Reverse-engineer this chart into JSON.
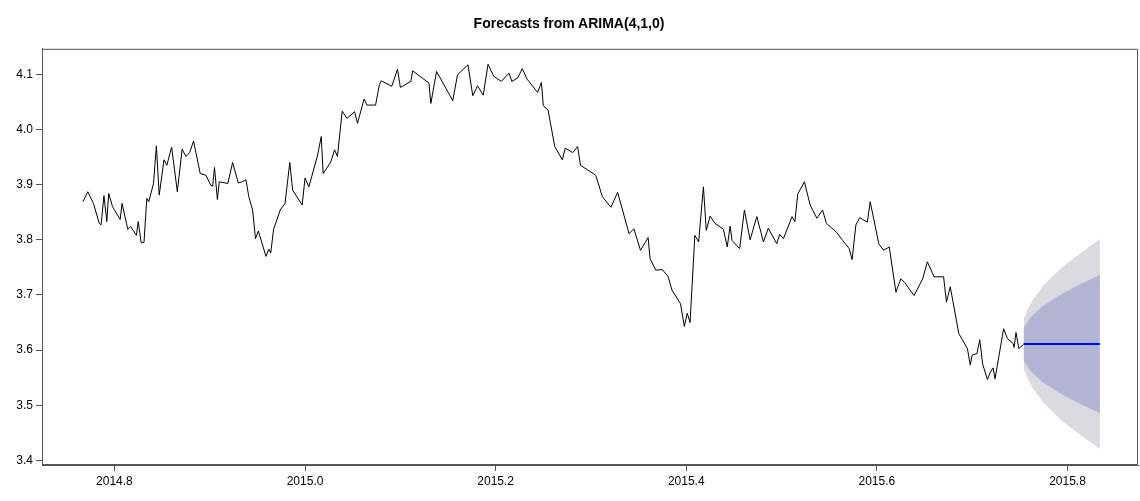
{
  "chart_data": {
    "type": "line",
    "title": "Forecasts from ARIMA(4,1,0)",
    "xlim": [
      2014.724,
      2015.874
    ],
    "ylim": [
      3.392,
      4.146
    ],
    "xticks": [
      {
        "value": 2014.8,
        "label": "2014.8"
      },
      {
        "value": 2015,
        "label": "2015.0"
      },
      {
        "value": 2015.2,
        "label": "2015.2"
      },
      {
        "value": 2015.4,
        "label": "2015.4"
      },
      {
        "value": 2015.6,
        "label": "2015.6"
      },
      {
        "value": 2015.8,
        "label": "2015.8"
      }
    ],
    "yticks": [
      3.4,
      3.5,
      3.6,
      3.7,
      3.8,
      3.9,
      {
        "value": 4,
        "label": "4.0"
      },
      4.1
    ],
    "grid": false,
    "legend": false,
    "marker": "none",
    "line_style": "solid",
    "series": [
      {
        "color": "#000000",
        "x": [
          2014.767,
          2014.772,
          2014.778,
          2014.784,
          2014.786,
          2014.789,
          2014.792,
          2014.794,
          2014.798,
          2014.806,
          2014.808,
          2014.814,
          2014.817,
          2014.823,
          2014.825,
          2014.828,
          2014.831,
          2014.834,
          2014.836,
          2014.841,
          2014.844,
          2014.847,
          2014.852,
          2014.855,
          2014.86,
          2014.866,
          2014.871,
          2014.875,
          2014.879,
          2014.883,
          2014.89,
          2014.896,
          2014.901,
          2014.903,
          2014.905,
          2014.908,
          2014.91,
          2014.919,
          2014.924,
          2014.93,
          2014.934,
          2014.938,
          2014.941,
          2014.945,
          2014.948,
          2014.951,
          2014.959,
          2014.962,
          2014.964,
          2014.967,
          2014.974,
          2014.979,
          2014.984,
          2014.987,
          2014.997,
          2015.0,
          2015.004,
          2015.013,
          2015.017,
          2015.019,
          2015.027,
          2015.031,
          2015.034,
          2015.039,
          2015.044,
          2015.052,
          2015.055,
          2015.062,
          2015.065,
          2015.074,
          2015.078,
          2015.08,
          2015.091,
          2015.097,
          2015.1,
          2015.111,
          2015.113,
          2015.13,
          2015.132,
          2015.138,
          2015.155,
          2015.16,
          2015.171,
          2015.176,
          2015.181,
          2015.187,
          2015.192,
          2015.198,
          2015.206,
          2015.214,
          2015.217,
          2015.223,
          2015.228,
          2015.233,
          2015.244,
          2015.248,
          2015.25,
          2015.255,
          2015.262,
          2015.27,
          2015.273,
          2015.281,
          2015.286,
          2015.289,
          2015.305,
          2015.312,
          2015.321,
          2015.328,
          2015.34,
          2015.345,
          2015.352,
          2015.36,
          2015.362,
          2015.368,
          2015.375,
          2015.381,
          2015.385,
          2015.394,
          2015.398,
          2015.401,
          2015.404,
          2015.409,
          2015.413,
          2015.418,
          2015.421,
          2015.425,
          2015.43,
          2015.439,
          2015.443,
          2015.446,
          2015.448,
          2015.456,
          2015.461,
          2015.467,
          2015.474,
          2015.481,
          2015.486,
          2015.495,
          2015.498,
          2015.502,
          2015.511,
          2015.514,
          2015.517,
          2015.524,
          2015.53,
          2015.537,
          2015.543,
          2015.547,
          2015.558,
          2015.564,
          2015.571,
          2015.574,
          2015.578,
          2015.582,
          2015.59,
          2015.593,
          2015.602,
          2015.607,
          2015.613,
          2015.62,
          2015.625,
          2015.629,
          2015.639,
          2015.648,
          2015.653,
          2015.66,
          2015.67,
          2015.673,
          2015.677,
          2015.686,
          2015.695,
          2015.698,
          2015.7,
          2015.705,
          2015.708,
          2015.711,
          2015.716,
          2015.719,
          2015.722,
          2015.724,
          2015.733,
          2015.737,
          2015.743,
          2015.744,
          2015.746,
          2015.749,
          2015.754
        ],
        "values": [
          3.869,
          3.887,
          3.866,
          3.83,
          3.827,
          3.88,
          3.833,
          3.884,
          3.86,
          3.837,
          3.866,
          3.819,
          3.824,
          3.808,
          3.833,
          3.795,
          3.795,
          3.875,
          3.869,
          3.902,
          3.97,
          3.881,
          3.945,
          3.935,
          3.968,
          3.887,
          3.964,
          3.951,
          3.958,
          3.979,
          3.92,
          3.917,
          3.899,
          3.897,
          3.931,
          3.873,
          3.905,
          3.902,
          3.94,
          3.903,
          3.905,
          3.909,
          3.878,
          3.854,
          3.802,
          3.816,
          3.77,
          3.783,
          3.776,
          3.819,
          3.854,
          3.866,
          3.94,
          3.89,
          3.863,
          3.912,
          3.896,
          3.952,
          3.987,
          3.92,
          3.941,
          3.963,
          3.951,
          4.033,
          4.02,
          4.032,
          4.011,
          4.055,
          4.044,
          4.044,
          4.081,
          4.088,
          4.078,
          4.109,
          4.076,
          4.087,
          4.106,
          4.084,
          4.047,
          4.105,
          4.052,
          4.099,
          4.117,
          4.061,
          4.079,
          4.062,
          4.118,
          4.096,
          4.087,
          4.102,
          4.087,
          4.093,
          4.11,
          4.091,
          4.067,
          4.085,
          4.043,
          4.035,
          3.969,
          3.945,
          3.966,
          3.958,
          3.969,
          3.935,
          3.917,
          3.878,
          3.859,
          3.886,
          3.811,
          3.82,
          3.781,
          3.804,
          3.766,
          3.745,
          3.746,
          3.733,
          3.709,
          3.684,
          3.643,
          3.667,
          3.65,
          3.808,
          3.796,
          3.896,
          3.817,
          3.843,
          3.83,
          3.819,
          3.787,
          3.825,
          3.799,
          3.784,
          3.854,
          3.8,
          3.842,
          3.796,
          3.821,
          3.793,
          3.81,
          3.802,
          3.842,
          3.833,
          3.883,
          3.905,
          3.863,
          3.839,
          3.854,
          3.83,
          3.813,
          3.799,
          3.784,
          3.764,
          3.827,
          3.84,
          3.832,
          3.869,
          3.793,
          3.781,
          3.787,
          3.705,
          3.729,
          3.723,
          3.699,
          3.729,
          3.76,
          3.733,
          3.733,
          3.687,
          3.715,
          3.63,
          3.603,
          3.573,
          3.591,
          3.594,
          3.619,
          3.575,
          3.547,
          3.56,
          3.568,
          3.548,
          3.639,
          3.621,
          3.612,
          3.605,
          3.632,
          3.603,
          3.611
        ]
      },
      {
        "type": "area",
        "color": "#dadae0",
        "x": [
          2015.754,
          2015.762,
          2015.774,
          2015.794,
          2015.814,
          2015.834
        ],
        "values": [
          null,
          null,
          null,
          null,
          null,
          null
        ],
        "lower": [
          3.565,
          3.535,
          3.506,
          3.472,
          3.446,
          3.421
        ],
        "upper": [
          3.657,
          3.687,
          3.716,
          3.75,
          3.776,
          3.801
        ]
      },
      {
        "type": "area",
        "color": "#b1b5d3",
        "x": [
          2015.754,
          2015.762,
          2015.774,
          2015.794,
          2015.814,
          2015.834
        ],
        "values": [
          null,
          null,
          null,
          null,
          null,
          null
        ],
        "lower": [
          3.581,
          3.561,
          3.542,
          3.52,
          3.502,
          3.486
        ],
        "upper": [
          3.641,
          3.661,
          3.68,
          3.702,
          3.72,
          3.736
        ]
      },
      {
        "color": "#0000ff",
        "x": [
          2015.754,
          2015.834
        ],
        "values": [
          3.611,
          3.611
        ]
      }
    ]
  }
}
